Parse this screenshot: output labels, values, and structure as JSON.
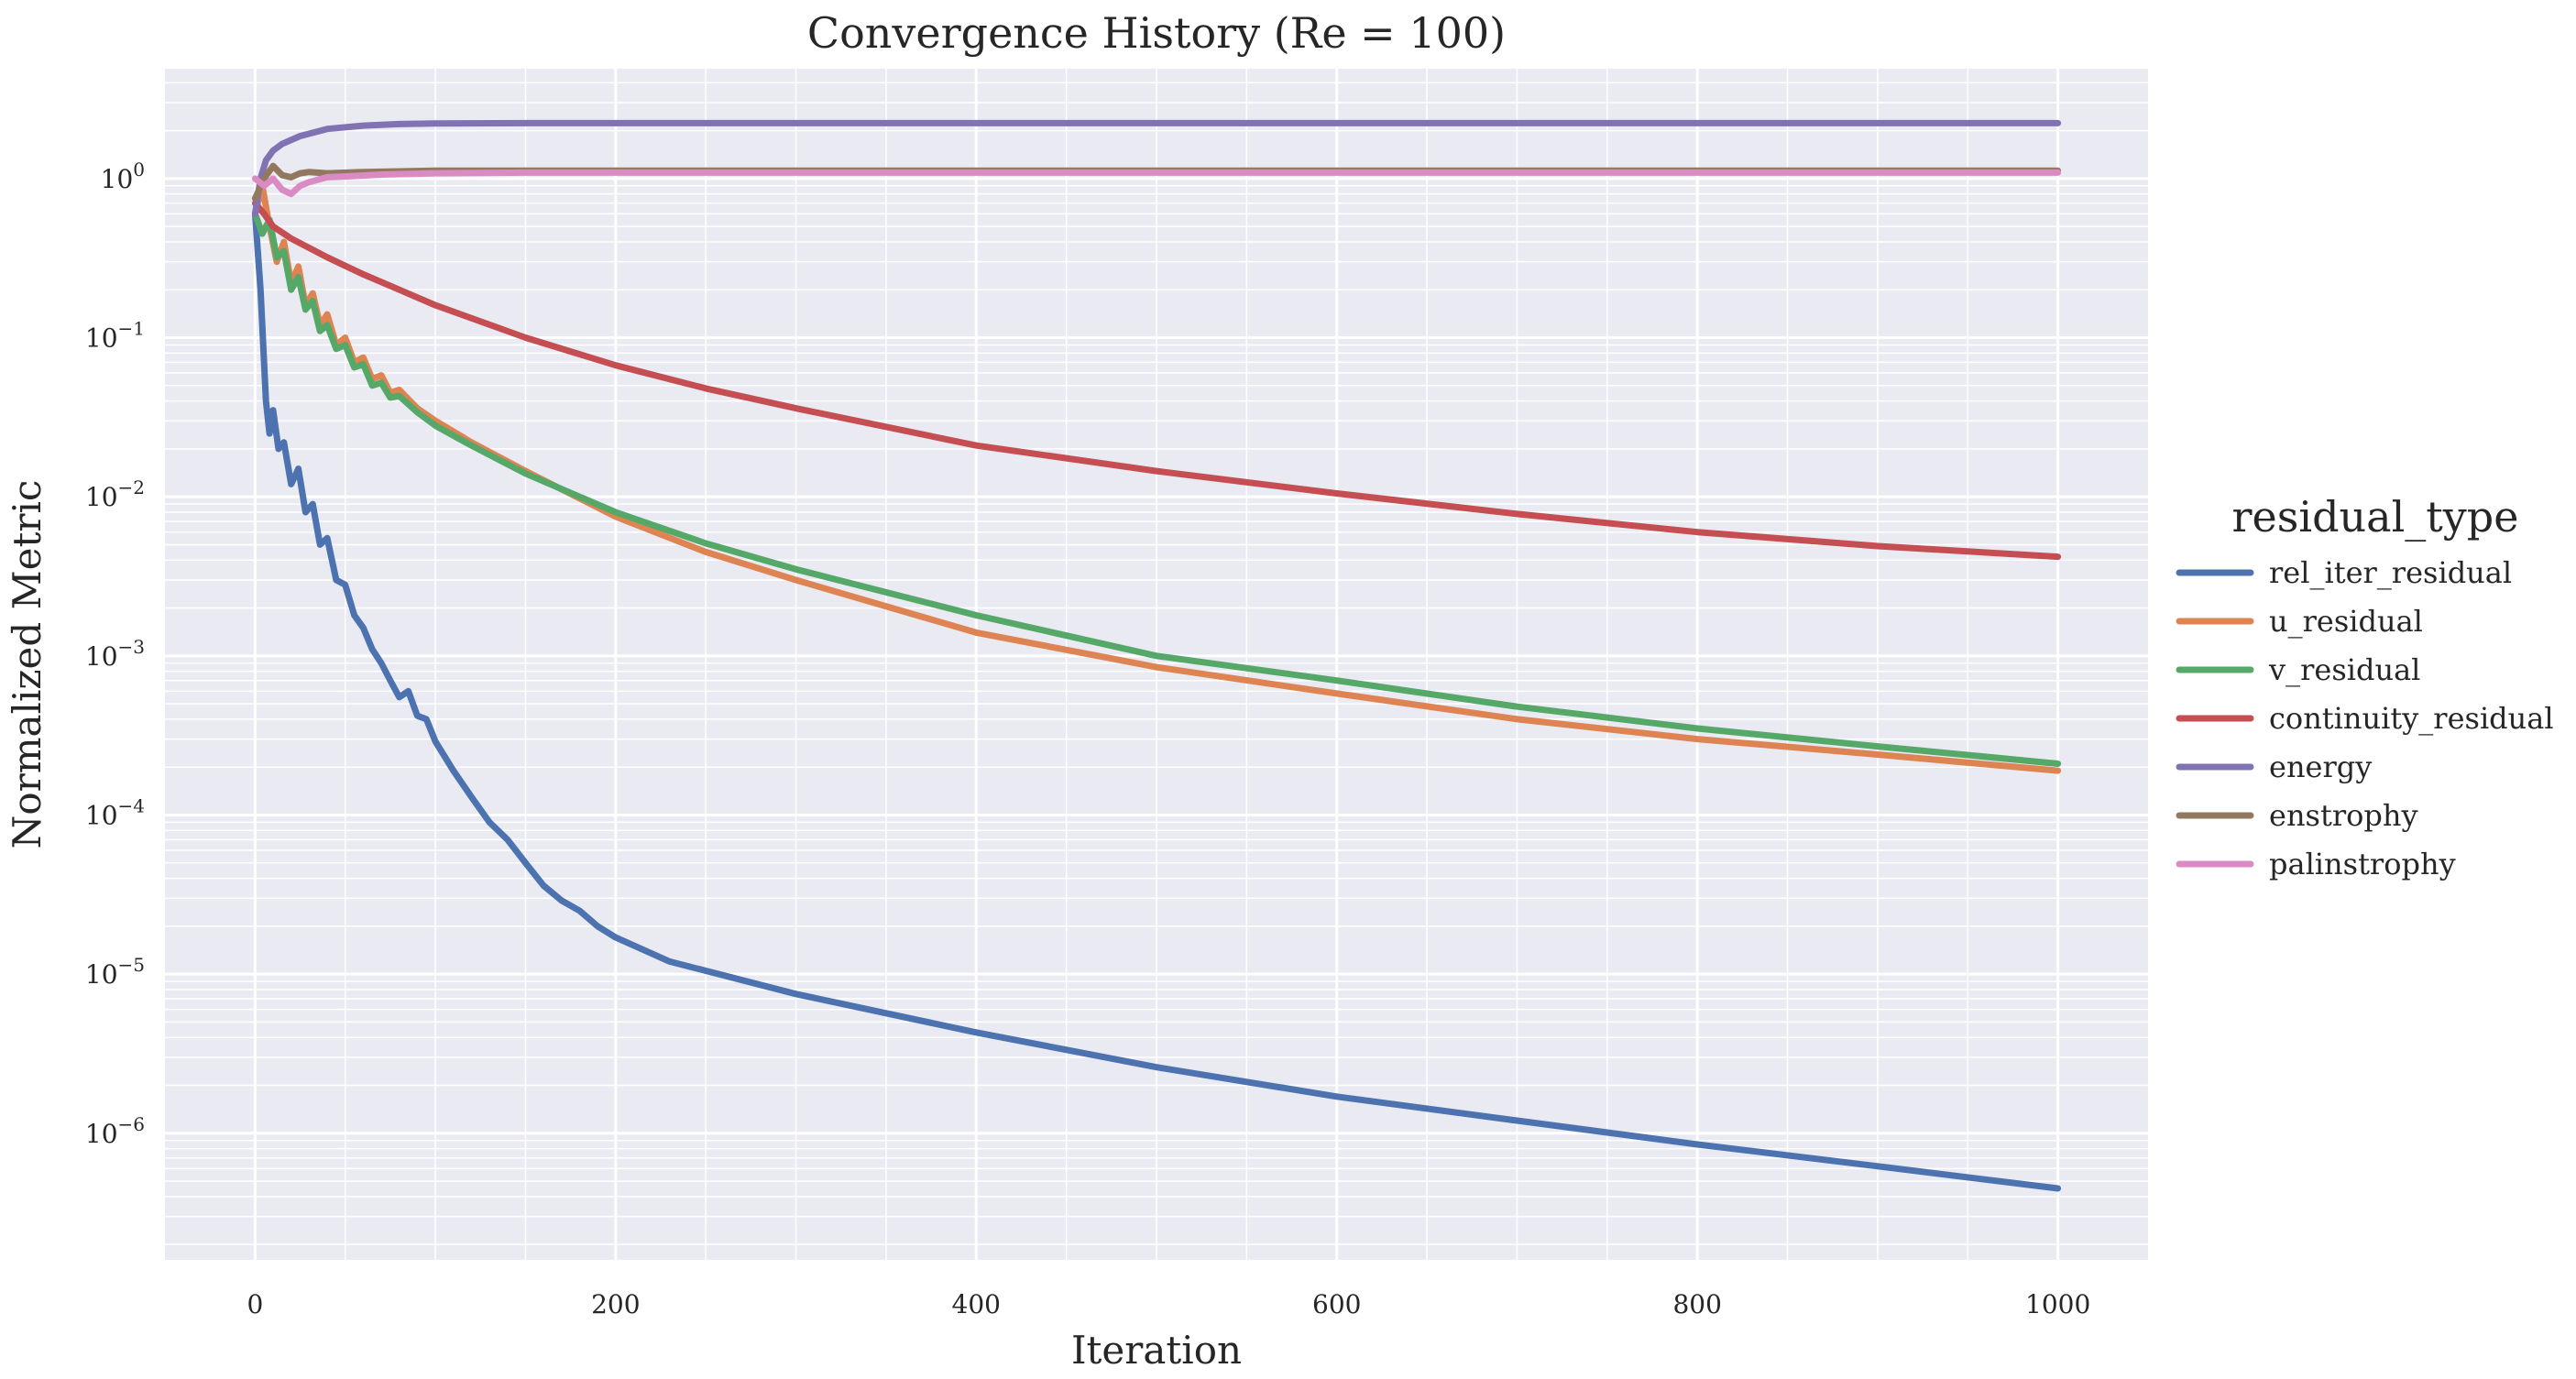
{
  "chart_data": {
    "type": "line",
    "title": "Convergence History (Re = 100)",
    "xlabel": "Iteration",
    "ylabel": "Normalized Metric",
    "xlim": [
      -50,
      1050
    ],
    "ylim": [
      1.6e-07,
      4.9
    ],
    "yscale": "log",
    "grid": true,
    "background": "#EAEAF2",
    "x_ticks": [
      0,
      200,
      400,
      600,
      800,
      1000
    ],
    "x_tick_labels": [
      "0",
      "200",
      "400",
      "600",
      "800",
      "1000"
    ],
    "x_minor_ticks": [
      50,
      100,
      150,
      250,
      300,
      350,
      450,
      500,
      550,
      650,
      700,
      750,
      850,
      900,
      950
    ],
    "y_ticks": [
      {
        "value": 1,
        "base": "10",
        "exp": "0"
      },
      {
        "value": 0.1,
        "base": "10",
        "exp": "−1"
      },
      {
        "value": 0.01,
        "base": "10",
        "exp": "−2"
      },
      {
        "value": 0.001,
        "base": "10",
        "exp": "−3"
      },
      {
        "value": 0.0001,
        "base": "10",
        "exp": "−4"
      },
      {
        "value": 1e-05,
        "base": "10",
        "exp": "−5"
      },
      {
        "value": 1e-06,
        "base": "10",
        "exp": "−6"
      }
    ],
    "legend": {
      "title": "residual_type",
      "position": "right"
    },
    "series": [
      {
        "name": "rel_iter_residual",
        "color": "#4C72B0",
        "points": [
          [
            0,
            0.6
          ],
          [
            3,
            0.2
          ],
          [
            6,
            0.04
          ],
          [
            8,
            0.025
          ],
          [
            10,
            0.035
          ],
          [
            13,
            0.02
          ],
          [
            16,
            0.022
          ],
          [
            20,
            0.012
          ],
          [
            24,
            0.015
          ],
          [
            28,
            0.008
          ],
          [
            32,
            0.009
          ],
          [
            36,
            0.005
          ],
          [
            40,
            0.0055
          ],
          [
            45,
            0.003
          ],
          [
            50,
            0.0028
          ],
          [
            55,
            0.0018
          ],
          [
            60,
            0.0015
          ],
          [
            65,
            0.0011
          ],
          [
            70,
            0.0009
          ],
          [
            75,
            0.0007
          ],
          [
            80,
            0.00055
          ],
          [
            85,
            0.0006
          ],
          [
            90,
            0.00042
          ],
          [
            95,
            0.0004
          ],
          [
            100,
            0.00029
          ],
          [
            110,
            0.00019
          ],
          [
            120,
            0.00013
          ],
          [
            130,
            9e-05
          ],
          [
            140,
            7e-05
          ],
          [
            150,
            5e-05
          ],
          [
            160,
            3.6e-05
          ],
          [
            170,
            2.9e-05
          ],
          [
            180,
            2.5e-05
          ],
          [
            190,
            2e-05
          ],
          [
            200,
            1.7e-05
          ],
          [
            230,
            1.2e-05
          ],
          [
            300,
            7.5e-06
          ],
          [
            400,
            4.3e-06
          ],
          [
            500,
            2.6e-06
          ],
          [
            600,
            1.7e-06
          ],
          [
            700,
            1.2e-06
          ],
          [
            800,
            8.5e-07
          ],
          [
            900,
            6.2e-07
          ],
          [
            1000,
            4.5e-07
          ]
        ]
      },
      {
        "name": "u_residual",
        "color": "#DD8452",
        "points": [
          [
            0,
            0.6
          ],
          [
            4,
            0.9
          ],
          [
            8,
            0.5
          ],
          [
            12,
            0.3
          ],
          [
            16,
            0.4
          ],
          [
            20,
            0.22
          ],
          [
            24,
            0.28
          ],
          [
            28,
            0.16
          ],
          [
            32,
            0.19
          ],
          [
            36,
            0.12
          ],
          [
            40,
            0.14
          ],
          [
            45,
            0.09
          ],
          [
            50,
            0.1
          ],
          [
            55,
            0.07
          ],
          [
            60,
            0.075
          ],
          [
            65,
            0.055
          ],
          [
            70,
            0.058
          ],
          [
            75,
            0.045
          ],
          [
            80,
            0.047
          ],
          [
            90,
            0.036
          ],
          [
            100,
            0.03
          ],
          [
            120,
            0.022
          ],
          [
            150,
            0.0145
          ],
          [
            200,
            0.0075
          ],
          [
            250,
            0.0045
          ],
          [
            300,
            0.003
          ],
          [
            400,
            0.0014
          ],
          [
            500,
            0.00085
          ],
          [
            600,
            0.00058
          ],
          [
            700,
            0.0004
          ],
          [
            800,
            0.0003
          ],
          [
            900,
            0.00024
          ],
          [
            1000,
            0.00019
          ]
        ]
      },
      {
        "name": "v_residual",
        "color": "#55A868",
        "points": [
          [
            0,
            0.6
          ],
          [
            4,
            0.45
          ],
          [
            8,
            0.55
          ],
          [
            12,
            0.32
          ],
          [
            16,
            0.35
          ],
          [
            20,
            0.2
          ],
          [
            24,
            0.24
          ],
          [
            28,
            0.15
          ],
          [
            32,
            0.17
          ],
          [
            36,
            0.11
          ],
          [
            40,
            0.12
          ],
          [
            45,
            0.085
          ],
          [
            50,
            0.09
          ],
          [
            55,
            0.065
          ],
          [
            60,
            0.068
          ],
          [
            65,
            0.05
          ],
          [
            70,
            0.052
          ],
          [
            75,
            0.042
          ],
          [
            80,
            0.043
          ],
          [
            90,
            0.034
          ],
          [
            100,
            0.028
          ],
          [
            120,
            0.021
          ],
          [
            150,
            0.014
          ],
          [
            200,
            0.008
          ],
          [
            250,
            0.0051
          ],
          [
            300,
            0.0035
          ],
          [
            400,
            0.0018
          ],
          [
            500,
            0.001
          ],
          [
            600,
            0.0007
          ],
          [
            700,
            0.00048
          ],
          [
            800,
            0.00035
          ],
          [
            900,
            0.00027
          ],
          [
            1000,
            0.00021
          ]
        ]
      },
      {
        "name": "continuity_residual",
        "color": "#C44E52",
        "points": [
          [
            0,
            0.7
          ],
          [
            5,
            0.6
          ],
          [
            10,
            0.5
          ],
          [
            20,
            0.42
          ],
          [
            40,
            0.32
          ],
          [
            60,
            0.25
          ],
          [
            80,
            0.2
          ],
          [
            100,
            0.16
          ],
          [
            150,
            0.1
          ],
          [
            200,
            0.067
          ],
          [
            250,
            0.048
          ],
          [
            300,
            0.036
          ],
          [
            400,
            0.021
          ],
          [
            500,
            0.0145
          ],
          [
            600,
            0.0105
          ],
          [
            700,
            0.0078
          ],
          [
            800,
            0.006
          ],
          [
            900,
            0.0049
          ],
          [
            1000,
            0.0042
          ]
        ]
      },
      {
        "name": "energy",
        "color": "#8172B3",
        "points": [
          [
            0,
            0.6
          ],
          [
            3,
            1.0
          ],
          [
            6,
            1.3
          ],
          [
            10,
            1.5
          ],
          [
            15,
            1.65
          ],
          [
            25,
            1.85
          ],
          [
            40,
            2.05
          ],
          [
            60,
            2.15
          ],
          [
            80,
            2.2
          ],
          [
            100,
            2.22
          ],
          [
            150,
            2.23
          ],
          [
            300,
            2.23
          ],
          [
            1000,
            2.23
          ]
        ]
      },
      {
        "name": "enstrophy",
        "color": "#937860",
        "points": [
          [
            0,
            0.75
          ],
          [
            5,
            1.0
          ],
          [
            10,
            1.2
          ],
          [
            15,
            1.05
          ],
          [
            20,
            1.02
          ],
          [
            25,
            1.08
          ],
          [
            30,
            1.1
          ],
          [
            40,
            1.08
          ],
          [
            60,
            1.1
          ],
          [
            80,
            1.11
          ],
          [
            100,
            1.12
          ],
          [
            150,
            1.12
          ],
          [
            300,
            1.12
          ],
          [
            1000,
            1.12
          ]
        ]
      },
      {
        "name": "palinstrophy",
        "color": "#DA8BC3",
        "points": [
          [
            0,
            1.0
          ],
          [
            5,
            0.9
          ],
          [
            10,
            1.0
          ],
          [
            15,
            0.85
          ],
          [
            20,
            0.8
          ],
          [
            25,
            0.9
          ],
          [
            30,
            0.95
          ],
          [
            40,
            1.02
          ],
          [
            50,
            1.03
          ],
          [
            70,
            1.06
          ],
          [
            100,
            1.08
          ],
          [
            150,
            1.09
          ],
          [
            300,
            1.09
          ],
          [
            1000,
            1.09
          ]
        ]
      }
    ]
  }
}
